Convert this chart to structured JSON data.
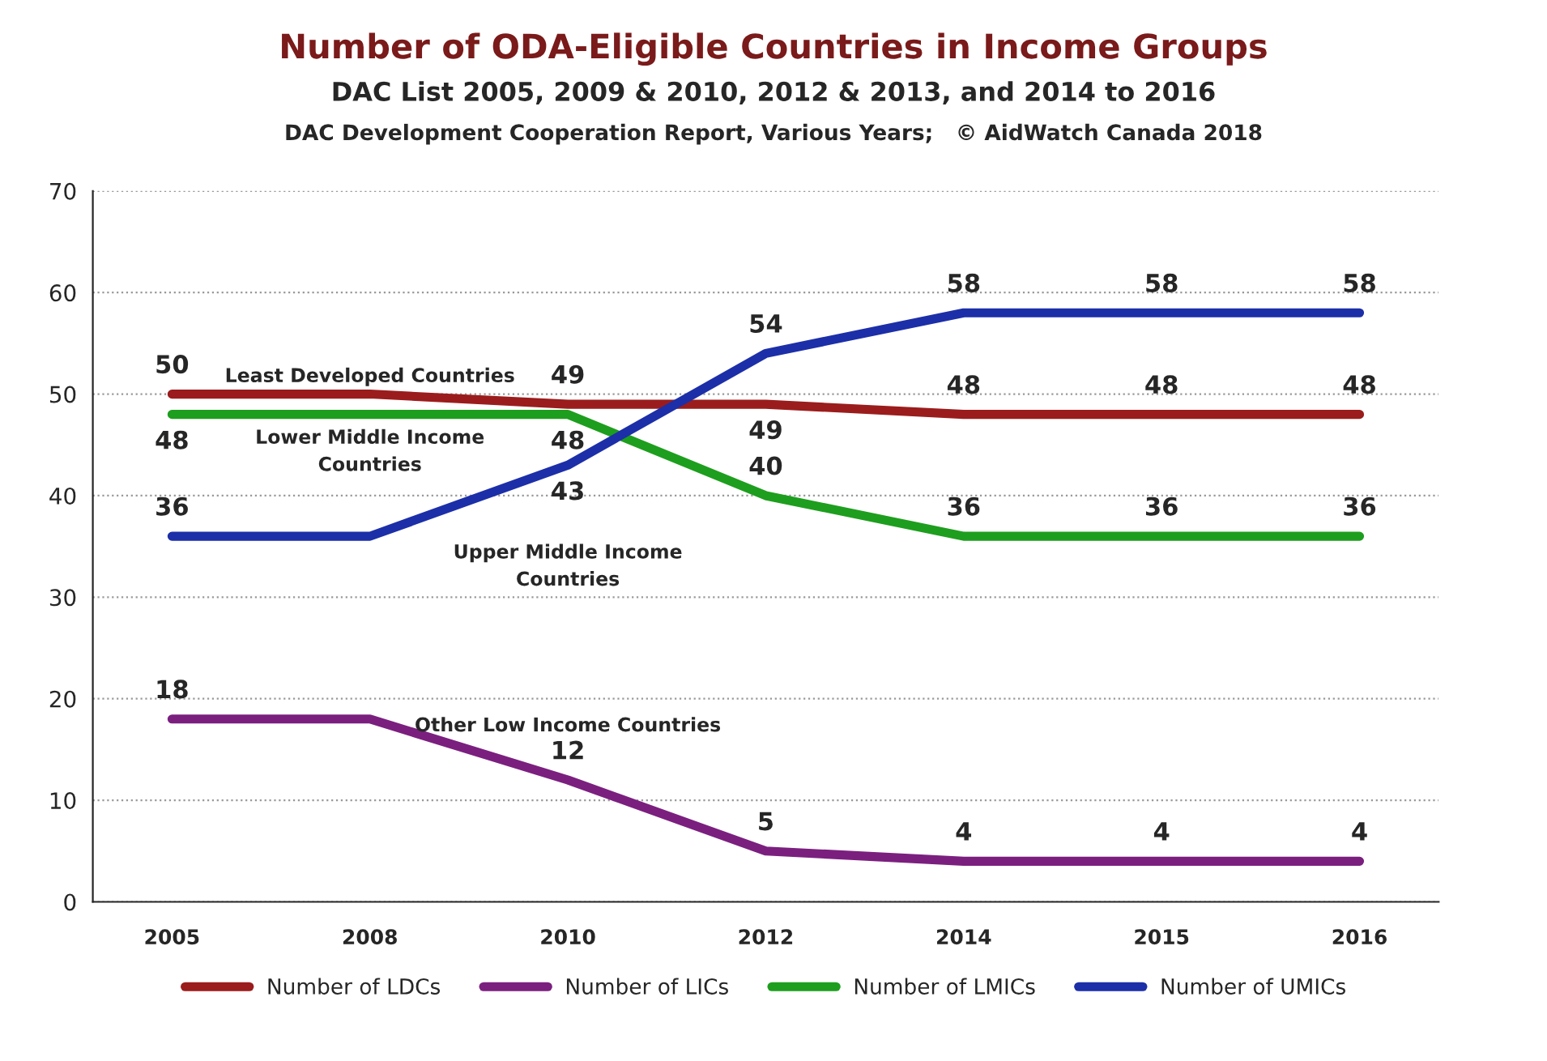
{
  "chart_data": {
    "type": "line",
    "title": "Number of ODA-Eligible Countries in Income Groups",
    "subtitle": "DAC List 2005, 2009 & 2010, 2012 & 2013, and 2014 to 2016",
    "annotations": [
      "DAC Development Cooperation Report, Various Years;   © AidWatch Canada 2018",
      "Least Developed Countries",
      "Lower Middle Income\nCountries",
      "Upper Middle Income\nCountries",
      "Other Low Income Countries"
    ],
    "categories": [
      "2005",
      "2008",
      "2010",
      "2012",
      "2014",
      "2015",
      "2016"
    ],
    "series": [
      {
        "name": "Number of LDCs",
        "color": "#9b1c1c",
        "values": [
          50,
          50,
          49,
          49,
          48,
          48,
          48
        ],
        "value_labels": [
          "50",
          null,
          "49",
          "49",
          "48",
          "48",
          "48"
        ]
      },
      {
        "name": "Number of LICs",
        "color": "#7b1f7f",
        "values": [
          18,
          18,
          12,
          5,
          4,
          4,
          4
        ],
        "value_labels": [
          "18",
          null,
          "12",
          "5",
          "4",
          "4",
          "4"
        ]
      },
      {
        "name": "Number of LMICs",
        "color": "#1e9e1e",
        "values": [
          48,
          48,
          48,
          40,
          36,
          36,
          36
        ],
        "value_labels": [
          "48",
          null,
          "48",
          "40",
          "36",
          "36",
          "36"
        ]
      },
      {
        "name": "Number of UMICs",
        "color": "#1c2fa8",
        "values": [
          36,
          36,
          43,
          54,
          58,
          58,
          58
        ],
        "value_labels": [
          "36",
          null,
          "43",
          "54",
          "58",
          "58",
          "58"
        ]
      }
    ],
    "ylim": [
      0,
      70
    ],
    "yticks": [
      0,
      10,
      20,
      30,
      40,
      50,
      60,
      70
    ],
    "grid": "y",
    "legend": "bottom",
    "marker": "none",
    "line_style": "solid"
  }
}
